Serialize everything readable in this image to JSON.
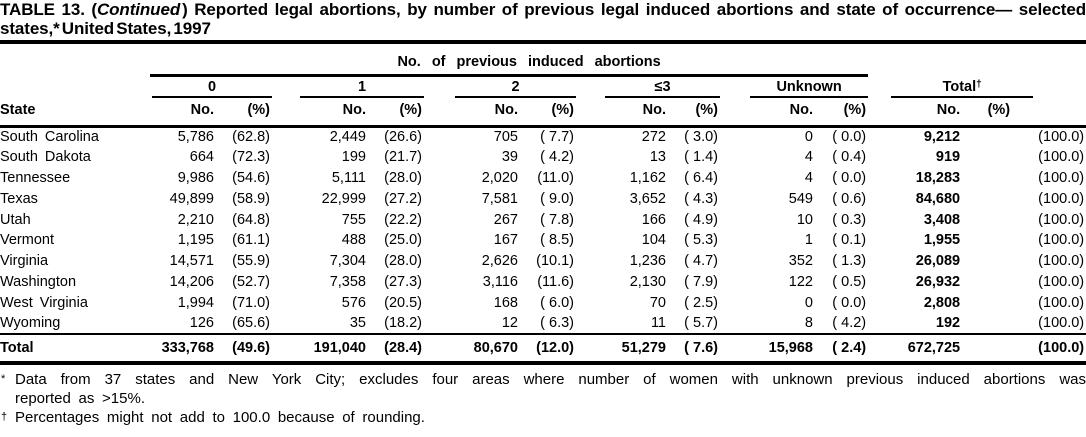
{
  "page": {
    "background": "#ffffff",
    "ink": "#000000"
  },
  "title": {
    "line1_pre": "TABLE 13. (",
    "line1_italic": "Continued",
    "line1_post": ") Reported legal abortions, by number of previous legal induced abortions and state of occurrence— selected",
    "line2": "states,* United States, 1997"
  },
  "table": {
    "spanner": "No. of previous induced abortions",
    "state_header": "State",
    "no_header": "No.",
    "pct_header": "(%)",
    "groups": [
      {
        "label": "0",
        "sup": ""
      },
      {
        "label": "1",
        "sup": ""
      },
      {
        "label": "2",
        "sup": ""
      },
      {
        "label": "≤3",
        "sup": ""
      },
      {
        "label": "Unknown",
        "sup": ""
      },
      {
        "label": "Total",
        "sup": "†"
      }
    ],
    "rows": [
      {
        "is_total": false,
        "cells": [
          "South Carolina",
          "5,786",
          "(62.8)",
          "2,449",
          "(26.6)",
          "705",
          "( 7.7)",
          "272",
          "( 3.0)",
          "0",
          "( 0.0)",
          "9,212",
          "(100.0)"
        ]
      },
      {
        "is_total": false,
        "cells": [
          "South Dakota",
          "664",
          "(72.3)",
          "199",
          "(21.7)",
          "39",
          "( 4.2)",
          "13",
          "( 1.4)",
          "4",
          "( 0.4)",
          "919",
          "(100.0)"
        ]
      },
      {
        "is_total": false,
        "cells": [
          "Tennessee",
          "9,986",
          "(54.6)",
          "5,111",
          "(28.0)",
          "2,020",
          "(11.0)",
          "1,162",
          "( 6.4)",
          "4",
          "( 0.0)",
          "18,283",
          "(100.0)"
        ]
      },
      {
        "is_total": false,
        "cells": [
          "Texas",
          "49,899",
          "(58.9)",
          "22,999",
          "(27.2)",
          "7,581",
          "( 9.0)",
          "3,652",
          "( 4.3)",
          "549",
          "( 0.6)",
          "84,680",
          "(100.0)"
        ]
      },
      {
        "is_total": false,
        "cells": [
          "Utah",
          "2,210",
          "(64.8)",
          "755",
          "(22.2)",
          "267",
          "( 7.8)",
          "166",
          "( 4.9)",
          "10",
          "( 0.3)",
          "3,408",
          "(100.0)"
        ]
      },
      {
        "is_total": false,
        "cells": [
          "Vermont",
          "1,195",
          "(61.1)",
          "488",
          "(25.0)",
          "167",
          "( 8.5)",
          "104",
          "( 5.3)",
          "1",
          "( 0.1)",
          "1,955",
          "(100.0)"
        ]
      },
      {
        "is_total": false,
        "cells": [
          "Virginia",
          "14,571",
          "(55.9)",
          "7,304",
          "(28.0)",
          "2,626",
          "(10.1)",
          "1,236",
          "( 4.7)",
          "352",
          "( 1.3)",
          "26,089",
          "(100.0)"
        ]
      },
      {
        "is_total": false,
        "cells": [
          "Washington",
          "14,206",
          "(52.7)",
          "7,358",
          "(27.3)",
          "3,116",
          "(11.6)",
          "2,130",
          "( 7.9)",
          "122",
          "( 0.5)",
          "26,932",
          "(100.0)"
        ]
      },
      {
        "is_total": false,
        "cells": [
          "West Virginia",
          "1,994",
          "(71.0)",
          "576",
          "(20.5)",
          "168",
          "( 6.0)",
          "70",
          "( 2.5)",
          "0",
          "( 0.0)",
          "2,808",
          "(100.0)"
        ]
      },
      {
        "is_total": false,
        "cells": [
          "Wyoming",
          "126",
          "(65.6)",
          "35",
          "(18.2)",
          "12",
          "( 6.3)",
          "11",
          "( 5.7)",
          "8",
          "( 4.2)",
          "192",
          "(100.0)"
        ]
      },
      {
        "is_total": true,
        "cells": [
          "Total",
          "333,768",
          "(49.6)",
          "191,040",
          "(28.4)",
          "80,670",
          "(12.0)",
          "51,279",
          "( 7.6)",
          "15,968",
          "( 2.4)",
          "672,725",
          "(100.0)"
        ]
      }
    ]
  },
  "footnotes": [
    {
      "marker": "*",
      "lines": [
        "Data from 37 states and New York City; excludes four areas where number of women with unknown previous induced abortions was",
        "reported as >15%."
      ]
    },
    {
      "marker": "†",
      "lines": [
        "Percentages might not add to 100.0 because of rounding."
      ]
    }
  ]
}
